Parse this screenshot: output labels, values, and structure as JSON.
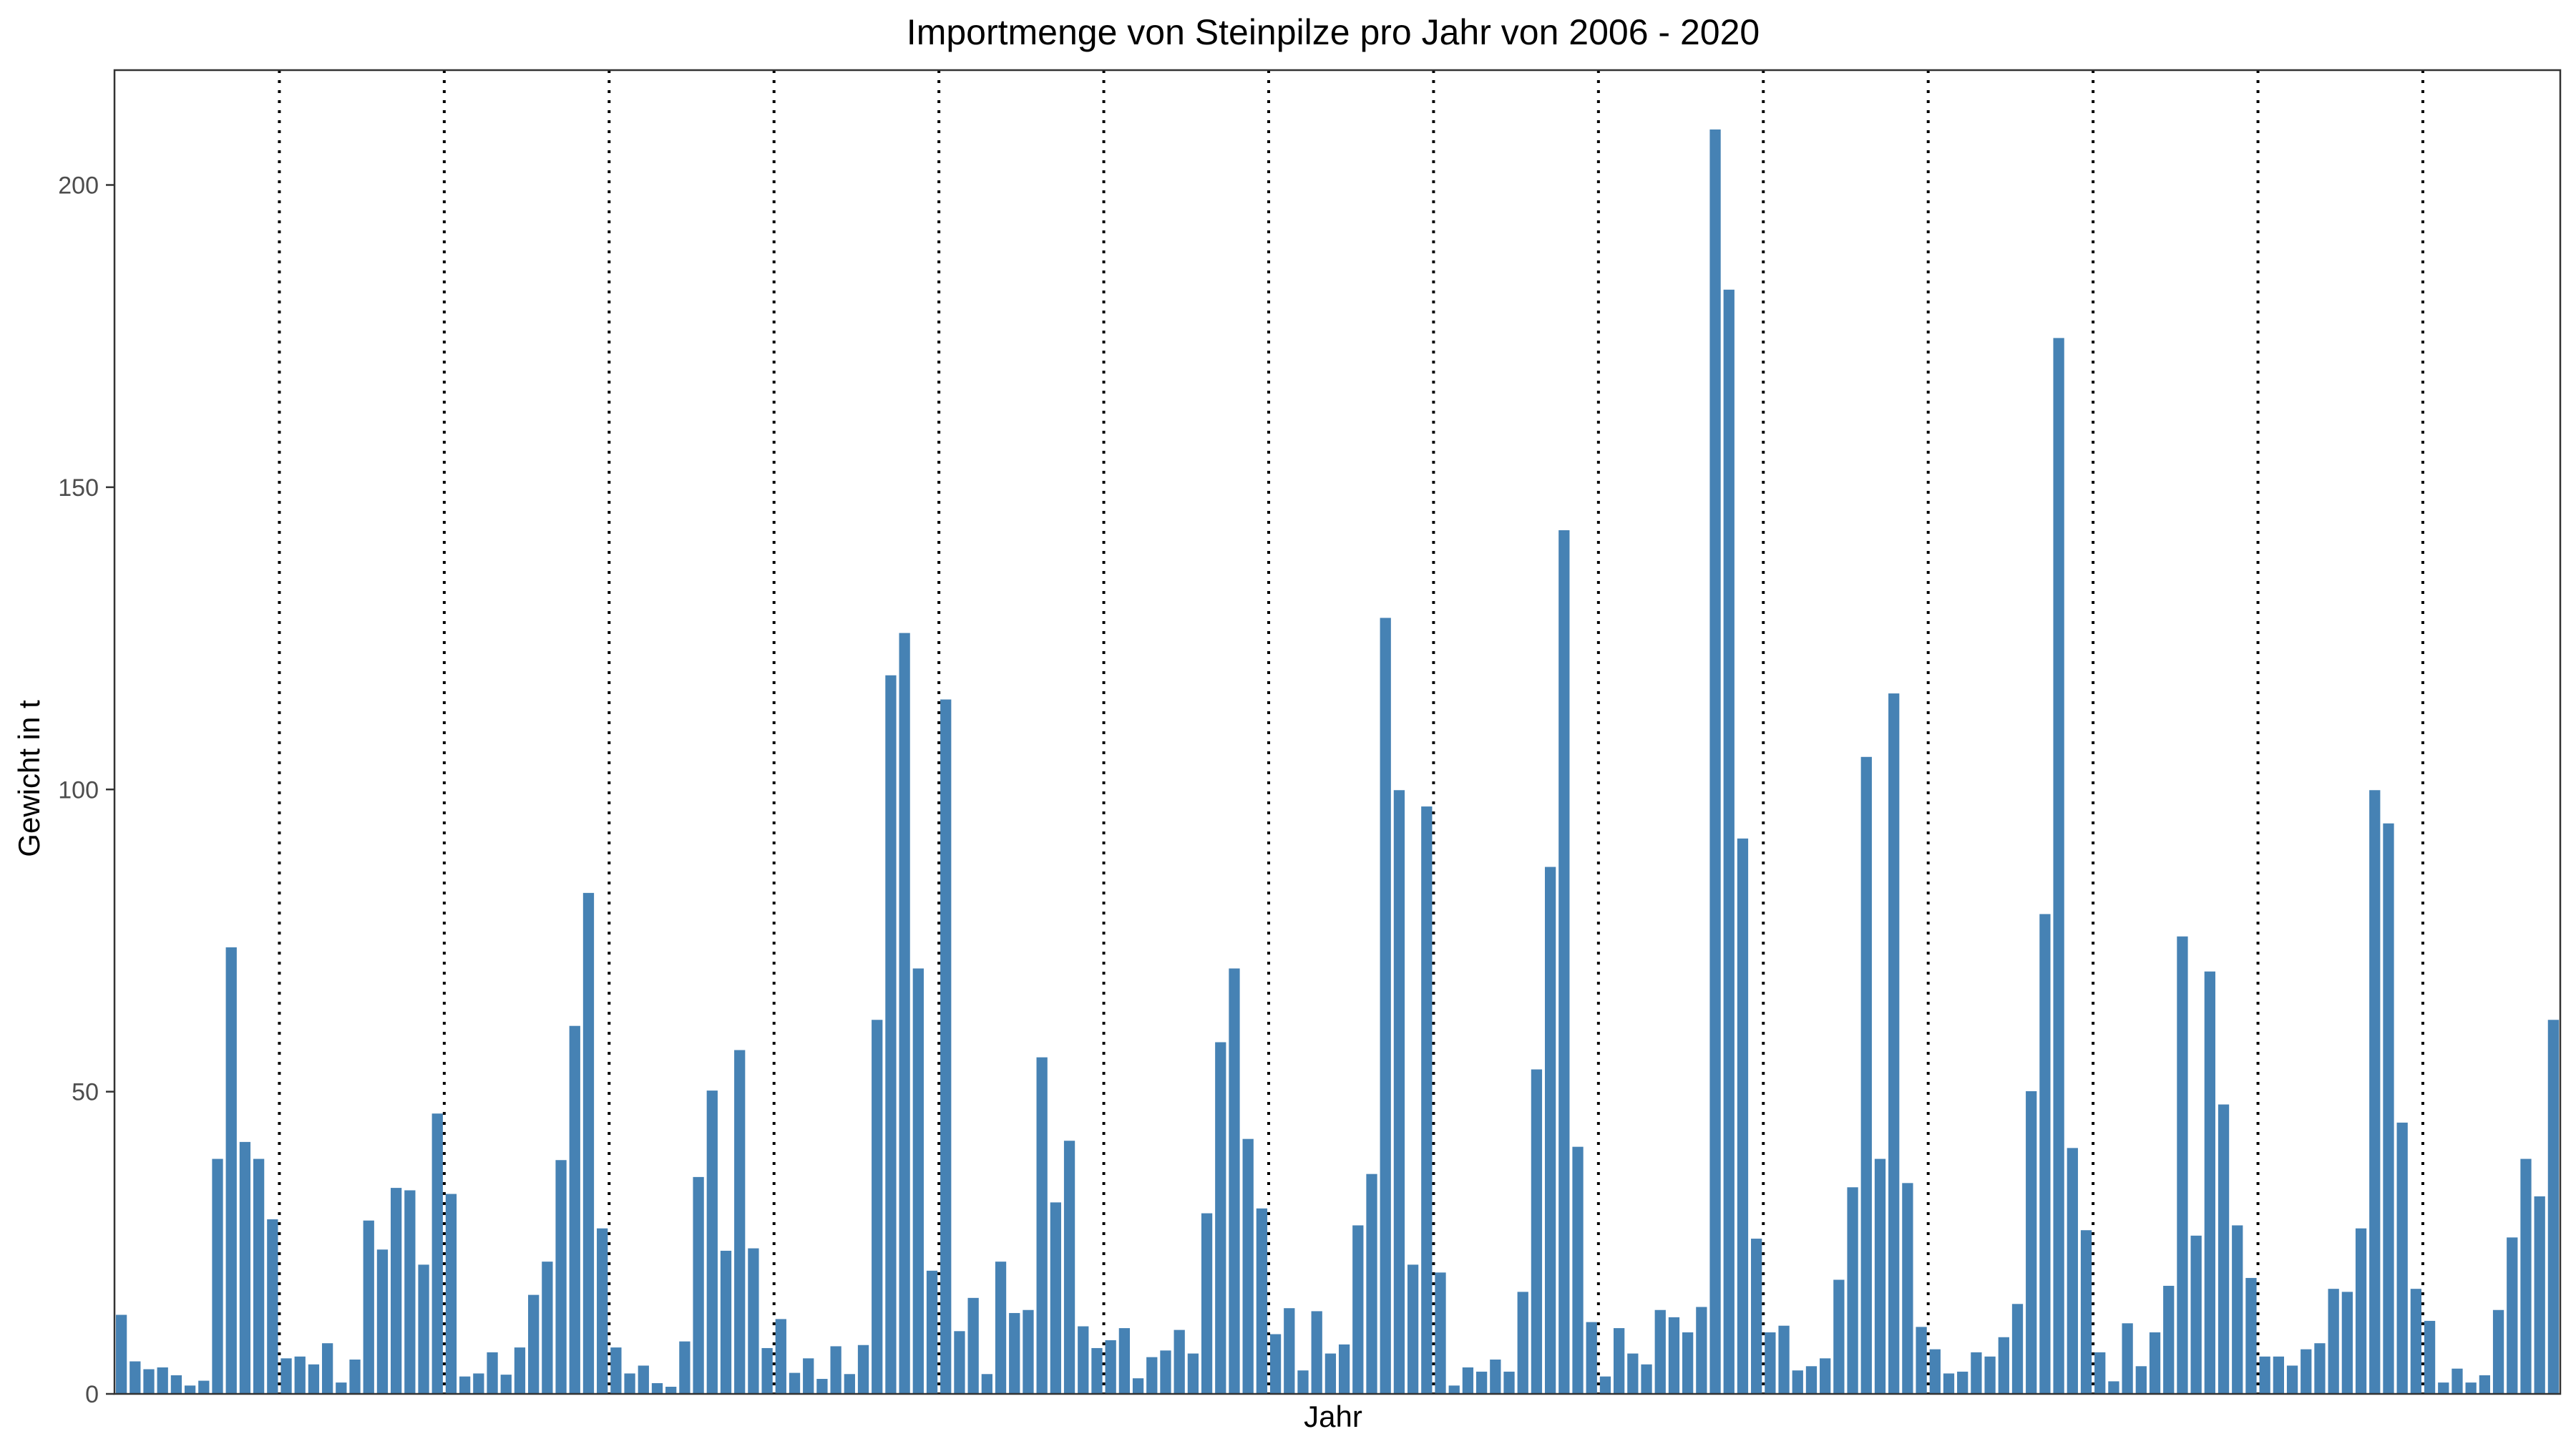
{
  "chart_data": {
    "type": "bar",
    "title": "Importmenge von Steinpilze pro Jahr von 2006 - 2020",
    "xlabel": "Jahr",
    "ylabel": "Gewicht in t",
    "ylim": [
      0,
      219
    ],
    "yticks": [
      0,
      50,
      100,
      150,
      200
    ],
    "grid": false,
    "bar_color": "#4682b4",
    "separator_color": "#000000",
    "bars_per_group": 12,
    "values": [
      13.2,
      5.5,
      4.2,
      4.5,
      3.2,
      1.5,
      2.3,
      39.0,
      74.0,
      41.8,
      39.0,
      29.0,
      6.0,
      6.3,
      5.0,
      8.5,
      2.0,
      5.8,
      28.8,
      24.0,
      34.2,
      33.8,
      21.5,
      46.5,
      33.2,
      3.0,
      3.5,
      7.0,
      3.3,
      7.8,
      16.5,
      22.0,
      38.8,
      61.0,
      83.0,
      27.5,
      7.8,
      3.5,
      4.8,
      1.9,
      1.3,
      8.8,
      36.0,
      50.3,
      23.8,
      57.0,
      24.2,
      7.7,
      12.5,
      3.6,
      6.0,
      2.6,
      8.0,
      3.4,
      8.2,
      62.0,
      119.0,
      126.0,
      70.5,
      20.5,
      115.0,
      10.5,
      16.0,
      3.4,
      22.0,
      13.5,
      14.0,
      55.8,
      31.8,
      42.0,
      11.3,
      7.7,
      9.0,
      11.0,
      2.7,
      6.2,
      7.3,
      10.7,
      6.8,
      30.0,
      58.3,
      70.5,
      42.3,
      30.8,
      10.0,
      14.3,
      4.0,
      13.8,
      6.8,
      8.3,
      28.0,
      36.5,
      128.5,
      100.0,
      21.5,
      97.3,
      20.2,
      1.5,
      4.5,
      3.8,
      5.8,
      3.8,
      17.0,
      53.8,
      87.3,
      143.0,
      41.0,
      12.0,
      3.0,
      11.0,
      6.8,
      5.0,
      14.0,
      12.8,
      10.3,
      14.5,
      209.3,
      182.8,
      92.0,
      25.8,
      10.3,
      11.4,
      4.0,
      4.7,
      6.0,
      19.0,
      34.3,
      105.5,
      39.0,
      116.0,
      35.0,
      11.2,
      7.5,
      3.5,
      3.8,
      7.0,
      6.3,
      9.5,
      15.0,
      50.2,
      79.5,
      174.8,
      40.8,
      27.2,
      7.0,
      2.2,
      11.8,
      4.7,
      10.3,
      18.0,
      75.8,
      26.3,
      70.0,
      48.0,
      28.0,
      19.3,
      6.3,
      6.3,
      4.8,
      7.5,
      8.5,
      17.5,
      17.0,
      27.5,
      100.0,
      94.5,
      45.0,
      17.5,
      12.2,
      2.0,
      4.3,
      2.0,
      3.2,
      14.0,
      26.0,
      39.0,
      32.8,
      62.0
    ]
  }
}
